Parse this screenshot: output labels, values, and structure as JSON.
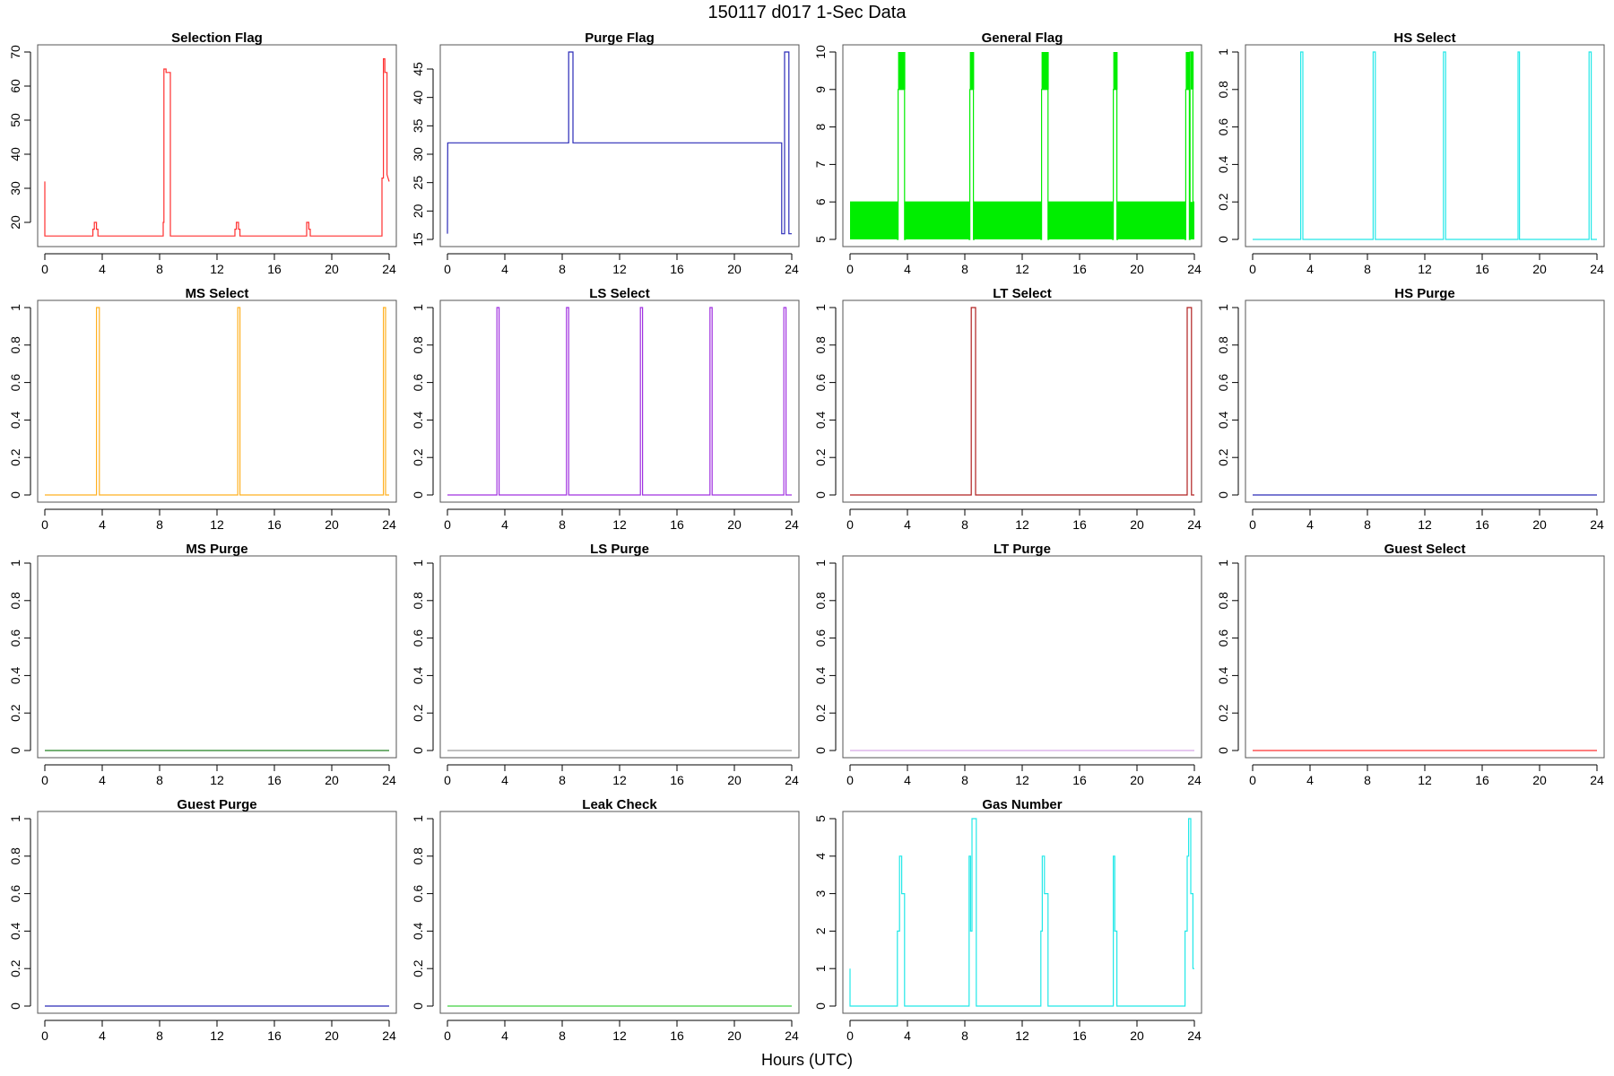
{
  "figure": {
    "main_title": "150117   d017   1-Sec Data",
    "xlabel": "Hours (UTC)"
  },
  "chart_data": [
    {
      "type": "line",
      "title": "Selection Flag",
      "color": "#ff3030",
      "xlim": [
        0,
        24
      ],
      "xticks": [
        0,
        4,
        8,
        12,
        16,
        20,
        24
      ],
      "ylim": [
        15,
        70
      ],
      "yticks": [
        20,
        30,
        40,
        50,
        60,
        70
      ],
      "x": [
        0,
        0,
        0.02,
        3.35,
        3.35,
        3.45,
        3.45,
        3.6,
        3.6,
        3.7,
        3.7,
        3.8,
        3.8,
        8.25,
        8.25,
        8.3,
        8.3,
        8.45,
        8.45,
        8.55,
        8.55,
        8.75,
        8.75,
        13.25,
        13.25,
        13.35,
        13.35,
        13.5,
        13.5,
        13.6,
        13.6,
        18.25,
        18.25,
        18.4,
        18.4,
        18.5,
        18.5,
        23.5,
        23.5,
        23.6,
        23.6,
        23.7,
        23.7,
        23.85,
        23.85,
        24
      ],
      "values": [
        32,
        16,
        16,
        16,
        18,
        18,
        20,
        20,
        18,
        18,
        16,
        16,
        16,
        16,
        20,
        20,
        65,
        65,
        64,
        64,
        64,
        64,
        16,
        16,
        18,
        18,
        20,
        20,
        18,
        18,
        16,
        16,
        20,
        20,
        18,
        18,
        16,
        16,
        33,
        33,
        68,
        68,
        64,
        64,
        34,
        32
      ]
    },
    {
      "type": "line",
      "title": "Purge Flag",
      "color": "#2a2ab8",
      "xlim": [
        0,
        24
      ],
      "xticks": [
        0,
        4,
        8,
        12,
        16,
        20,
        24
      ],
      "ylim": [
        15,
        48
      ],
      "yticks": [
        15,
        20,
        25,
        30,
        35,
        40,
        45
      ],
      "x": [
        0,
        0,
        0.02,
        8.45,
        8.45,
        8.75,
        8.75,
        23.3,
        23.3,
        23.5,
        23.5,
        23.8,
        23.8,
        24
      ],
      "values": [
        16,
        16,
        32,
        32,
        48,
        48,
        32,
        32,
        16,
        16,
        48,
        48,
        16,
        16
      ]
    },
    {
      "type": "line",
      "title": "General Flag",
      "color": "#00ee00",
      "xlim": [
        0,
        24
      ],
      "xticks": [
        0,
        4,
        8,
        12,
        16,
        20,
        24
      ],
      "ylim": [
        5,
        10
      ],
      "yticks": [
        5,
        6,
        7,
        8,
        9,
        10
      ],
      "x": [
        0,
        3.3,
        3.3,
        3.35,
        3.35,
        3.8,
        3.8,
        3.85,
        3.85,
        8.3,
        8.3,
        8.35,
        8.35,
        8.6,
        8.6,
        8.65,
        8.65,
        13.3,
        13.3,
        13.35,
        13.35,
        13.8,
        13.8,
        13.85,
        13.85,
        18.3,
        18.3,
        18.35,
        18.35,
        18.6,
        18.6,
        18.65,
        18.65,
        23.35,
        23.35,
        23.4,
        23.4,
        23.65,
        23.65,
        23.7,
        23.7,
        23.9,
        23.9,
        24
      ],
      "values": [
        6,
        6,
        5,
        5,
        9,
        9,
        5,
        5,
        6,
        6,
        5,
        5,
        9,
        9,
        5,
        5,
        6,
        6,
        5,
        5,
        9,
        9,
        5,
        5,
        6,
        6,
        5,
        5,
        9,
        9,
        5,
        5,
        6,
        6,
        5,
        5,
        9,
        9,
        5,
        5,
        10,
        10,
        6,
        6
      ],
      "bands": [
        {
          "x0": 0,
          "x1": 3.3,
          "y0": 5,
          "y1": 6
        },
        {
          "x0": 3.35,
          "x1": 3.85,
          "y0": 9,
          "y1": 10
        },
        {
          "x0": 3.85,
          "x1": 8.3,
          "y0": 5,
          "y1": 6
        },
        {
          "x0": 8.35,
          "x1": 8.65,
          "y0": 9,
          "y1": 10
        },
        {
          "x0": 8.65,
          "x1": 13.3,
          "y0": 5,
          "y1": 6
        },
        {
          "x0": 13.35,
          "x1": 13.85,
          "y0": 9,
          "y1": 10
        },
        {
          "x0": 13.85,
          "x1": 18.3,
          "y0": 5,
          "y1": 6
        },
        {
          "x0": 18.35,
          "x1": 18.65,
          "y0": 9,
          "y1": 10
        },
        {
          "x0": 18.65,
          "x1": 23.35,
          "y0": 5,
          "y1": 6
        },
        {
          "x0": 23.4,
          "x1": 23.7,
          "y0": 9,
          "y1": 10
        },
        {
          "x0": 23.75,
          "x1": 23.95,
          "y0": 9,
          "y1": 10
        },
        {
          "x0": 23.7,
          "x1": 24,
          "y0": 5,
          "y1": 6
        }
      ]
    },
    {
      "type": "line",
      "title": "HS Select",
      "color": "#22e8e8",
      "xlim": [
        0,
        24
      ],
      "xticks": [
        0,
        4,
        8,
        12,
        16,
        20,
        24
      ],
      "ylim": [
        0,
        1
      ],
      "yticks": [
        0,
        0.2,
        0.4,
        0.6,
        0.8,
        1
      ],
      "x": [
        0,
        3.35,
        3.35,
        3.5,
        3.5,
        8.4,
        8.4,
        8.55,
        8.55,
        13.3,
        13.3,
        13.45,
        13.45,
        18.5,
        18.5,
        18.6,
        18.6,
        23.45,
        23.45,
        23.6,
        23.6,
        24
      ],
      "values": [
        0,
        0,
        1,
        1,
        0,
        0,
        1,
        1,
        0,
        0,
        1,
        1,
        0,
        0,
        1,
        1,
        0,
        0,
        1,
        1,
        0,
        0
      ]
    },
    {
      "type": "line",
      "title": "MS Select",
      "color": "#ffb020",
      "xlim": [
        0,
        24
      ],
      "xticks": [
        0,
        4,
        8,
        12,
        16,
        20,
        24
      ],
      "ylim": [
        0,
        1
      ],
      "yticks": [
        0,
        0.2,
        0.4,
        0.6,
        0.8,
        1
      ],
      "x": [
        0,
        3.6,
        3.6,
        3.8,
        3.8,
        13.45,
        13.45,
        13.6,
        13.6,
        23.6,
        23.6,
        23.75,
        23.75,
        24
      ],
      "values": [
        0,
        0,
        1,
        1,
        0,
        0,
        1,
        1,
        0,
        0,
        1,
        1,
        0,
        0
      ]
    },
    {
      "type": "line",
      "title": "LS Select",
      "color": "#a030e0",
      "xlim": [
        0,
        24
      ],
      "xticks": [
        0,
        4,
        8,
        12,
        16,
        20,
        24
      ],
      "ylim": [
        0,
        1
      ],
      "yticks": [
        0,
        0.2,
        0.4,
        0.6,
        0.8,
        1
      ],
      "x": [
        0,
        3.45,
        3.45,
        3.6,
        3.6,
        8.3,
        8.3,
        8.45,
        8.45,
        13.45,
        13.45,
        13.6,
        13.6,
        18.3,
        18.3,
        18.45,
        18.45,
        23.45,
        23.45,
        23.6,
        23.6,
        24
      ],
      "values": [
        0,
        0,
        1,
        1,
        0,
        0,
        1,
        1,
        0,
        0,
        1,
        1,
        0,
        0,
        1,
        1,
        0,
        0,
        1,
        1,
        0,
        0
      ]
    },
    {
      "type": "line",
      "title": "LT Select",
      "color": "#b02020",
      "xlim": [
        0,
        24
      ],
      "xticks": [
        0,
        4,
        8,
        12,
        16,
        20,
        24
      ],
      "ylim": [
        0,
        1
      ],
      "yticks": [
        0,
        0.2,
        0.4,
        0.6,
        0.8,
        1
      ],
      "x": [
        0,
        8.45,
        8.45,
        8.75,
        8.75,
        23.5,
        23.5,
        23.8,
        23.8,
        24
      ],
      "values": [
        0,
        0,
        1,
        1,
        0,
        0,
        1,
        1,
        0,
        0
      ]
    },
    {
      "type": "line",
      "title": "HS Purge",
      "color": "#2a2ab8",
      "xlim": [
        0,
        24
      ],
      "xticks": [
        0,
        4,
        8,
        12,
        16,
        20,
        24
      ],
      "ylim": [
        0,
        1
      ],
      "yticks": [
        0,
        0.2,
        0.4,
        0.6,
        0.8,
        1
      ],
      "x": [
        0,
        24
      ],
      "values": [
        0,
        0
      ]
    },
    {
      "type": "line",
      "title": "MS Purge",
      "color": "#208020",
      "xlim": [
        0,
        24
      ],
      "xticks": [
        0,
        4,
        8,
        12,
        16,
        20,
        24
      ],
      "ylim": [
        0,
        1
      ],
      "yticks": [
        0,
        0.2,
        0.4,
        0.6,
        0.8,
        1
      ],
      "x": [
        0,
        24
      ],
      "values": [
        0,
        0
      ]
    },
    {
      "type": "line",
      "title": "LS Purge",
      "color": "#9a9a9a",
      "xlim": [
        0,
        24
      ],
      "xticks": [
        0,
        4,
        8,
        12,
        16,
        20,
        24
      ],
      "ylim": [
        0,
        1
      ],
      "yticks": [
        0,
        0.2,
        0.4,
        0.6,
        0.8,
        1
      ],
      "x": [
        0,
        24
      ],
      "values": [
        0,
        0
      ]
    },
    {
      "type": "line",
      "title": "LT Purge",
      "color": "#d8a8e8",
      "xlim": [
        0,
        24
      ],
      "xticks": [
        0,
        4,
        8,
        12,
        16,
        20,
        24
      ],
      "ylim": [
        0,
        1
      ],
      "yticks": [
        0,
        0.2,
        0.4,
        0.6,
        0.8,
        1
      ],
      "x": [
        0,
        24
      ],
      "values": [
        0,
        0
      ]
    },
    {
      "type": "line",
      "title": "Guest Select",
      "color": "#ff3030",
      "xlim": [
        0,
        24
      ],
      "xticks": [
        0,
        4,
        8,
        12,
        16,
        20,
        24
      ],
      "ylim": [
        0,
        1
      ],
      "yticks": [
        0,
        0.2,
        0.4,
        0.6,
        0.8,
        1
      ],
      "x": [
        0,
        24
      ],
      "values": [
        0,
        0
      ]
    },
    {
      "type": "line",
      "title": "Guest Purge",
      "color": "#2a2ab8",
      "xlim": [
        0,
        24
      ],
      "xticks": [
        0,
        4,
        8,
        12,
        16,
        20,
        24
      ],
      "ylim": [
        0,
        1
      ],
      "yticks": [
        0,
        0.2,
        0.4,
        0.6,
        0.8,
        1
      ],
      "x": [
        0,
        24
      ],
      "values": [
        0,
        0
      ]
    },
    {
      "type": "line",
      "title": "Leak Check",
      "color": "#40d040",
      "xlim": [
        0,
        24
      ],
      "xticks": [
        0,
        4,
        8,
        12,
        16,
        20,
        24
      ],
      "ylim": [
        0,
        1
      ],
      "yticks": [
        0,
        0.2,
        0.4,
        0.6,
        0.8,
        1
      ],
      "x": [
        0,
        24
      ],
      "values": [
        0,
        0
      ]
    },
    {
      "type": "line",
      "title": "Gas Number",
      "color": "#22e8e8",
      "xlim": [
        0,
        24
      ],
      "xticks": [
        0,
        4,
        8,
        12,
        16,
        20,
        24
      ],
      "ylim": [
        0,
        5
      ],
      "yticks": [
        0,
        1,
        2,
        3,
        4,
        5
      ],
      "x": [
        0,
        0,
        0.02,
        3.3,
        3.3,
        3.45,
        3.45,
        3.6,
        3.6,
        3.75,
        3.75,
        3.8,
        3.8,
        8.3,
        8.3,
        8.4,
        8.4,
        8.5,
        8.5,
        8.6,
        8.6,
        8.8,
        8.8,
        13.3,
        13.3,
        13.4,
        13.4,
        13.55,
        13.55,
        13.65,
        13.65,
        13.8,
        13.8,
        18.35,
        18.35,
        18.45,
        18.45,
        18.6,
        18.6,
        23.35,
        23.35,
        23.5,
        23.5,
        23.6,
        23.6,
        23.75,
        23.75,
        23.9,
        23.9,
        24
      ],
      "values": [
        1,
        0,
        0,
        0,
        2,
        2,
        4,
        4,
        3,
        3,
        3,
        3,
        0,
        0,
        4,
        4,
        2,
        2,
        5,
        5,
        5,
        5,
        0,
        0,
        2,
        2,
        4,
        4,
        3,
        3,
        3,
        3,
        0,
        0,
        4,
        4,
        2,
        2,
        0,
        0,
        2,
        2,
        4,
        4,
        5,
        5,
        3,
        3,
        1,
        1
      ]
    }
  ]
}
